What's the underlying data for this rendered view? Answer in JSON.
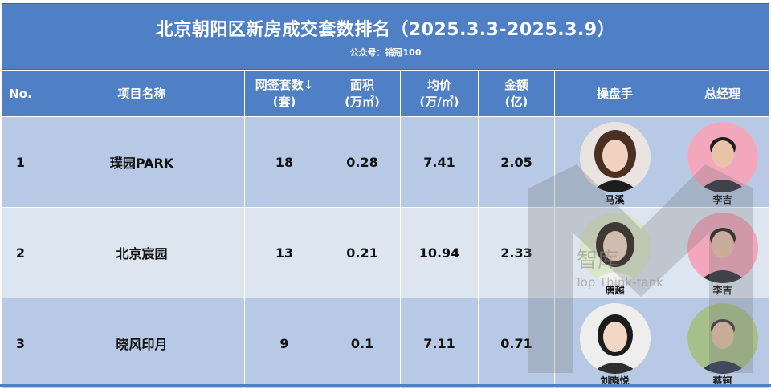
{
  "header": {
    "title": "北京朝阳区新房成交套数排名（2025.3.3-2025.3.9）",
    "subtitle": "公众号：销冠100"
  },
  "table": {
    "columns": [
      {
        "line1": "No.",
        "line2": ""
      },
      {
        "line1": "项目名称",
        "line2": ""
      },
      {
        "line1": "网签套数↓",
        "line2": "(套)"
      },
      {
        "line1": "面积",
        "line2": "(万㎡)"
      },
      {
        "line1": "均价",
        "line2": "(万/㎡)"
      },
      {
        "line1": "金额",
        "line2": "(亿)"
      },
      {
        "line1": "操盘手",
        "line2": ""
      },
      {
        "line1": "总经理",
        "line2": ""
      }
    ],
    "rows": [
      {
        "no": "1",
        "project": "璞园PARK",
        "units": "18",
        "area": "0.28",
        "avg_price": "7.41",
        "amount": "2.05",
        "operator": "马溪",
        "manager": "李吉"
      },
      {
        "no": "2",
        "project": "北京宸园",
        "units": "13",
        "area": "0.21",
        "avg_price": "10.94",
        "amount": "2.33",
        "operator": "唐越",
        "manager": "李吉"
      },
      {
        "no": "3",
        "project": "晓风印月",
        "units": "9",
        "area": "0.1",
        "avg_price": "7.11",
        "amount": "0.71",
        "operator": "刘晓悦",
        "manager": "蔡轲"
      }
    ]
  },
  "watermark": {
    "text": "智库",
    "text_en": "Top Think-tank"
  },
  "colors": {
    "header_bg": "#4f7fc4",
    "row_dark": "#b7c9e4",
    "row_light": "#dde5f1"
  }
}
